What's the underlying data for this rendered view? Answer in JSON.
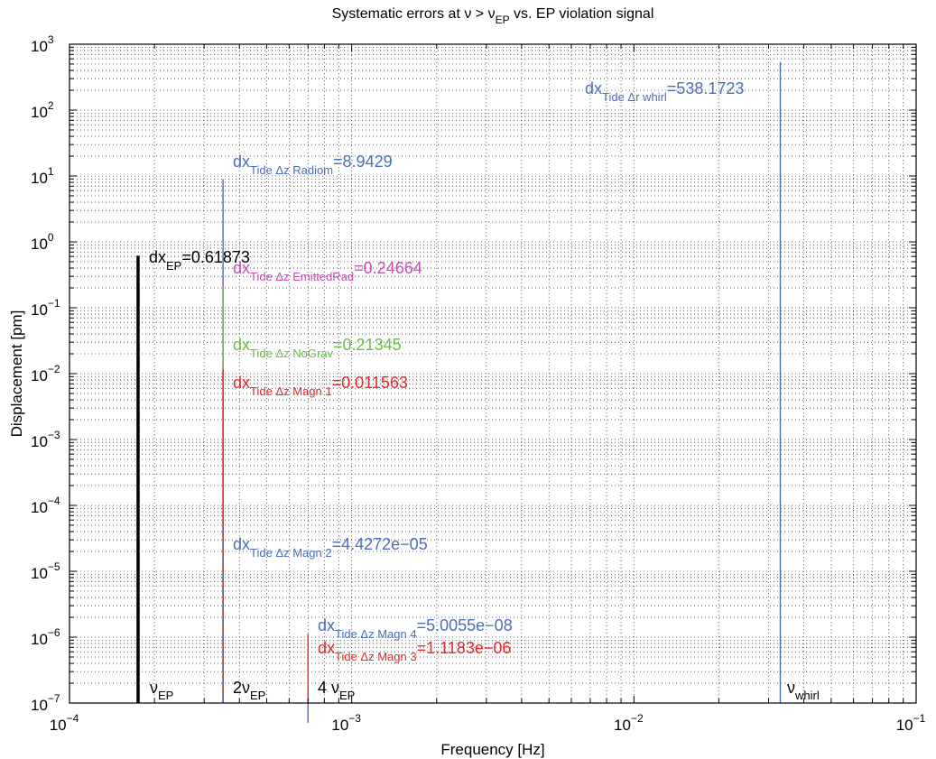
{
  "chart_data": {
    "type": "stem",
    "title": {
      "main": "Systematic errors at ν > ν",
      "sub": "EP",
      "tail": " vs. EP violation signal"
    },
    "xlabel": "Frequency [Hz]",
    "ylabel": "Displacement [pm]",
    "xscale": "log",
    "yscale": "log",
    "xlim": [
      0.0001,
      0.1
    ],
    "ylim": [
      1e-07,
      1000
    ],
    "grid": "dotted-minor",
    "x_ticks": [
      {
        "value": 0.0001,
        "base": "10",
        "exp": "−4"
      },
      {
        "value": 0.001,
        "base": "10",
        "exp": "−3"
      },
      {
        "value": 0.01,
        "base": "10",
        "exp": "−2"
      },
      {
        "value": 0.1,
        "base": "10",
        "exp": "−1"
      }
    ],
    "y_ticks": [
      {
        "value": 1e-07,
        "base": "10",
        "exp": "−7"
      },
      {
        "value": 1e-06,
        "base": "10",
        "exp": "−6"
      },
      {
        "value": 1e-05,
        "base": "10",
        "exp": "−5"
      },
      {
        "value": 0.0001,
        "base": "10",
        "exp": "−4"
      },
      {
        "value": 0.001,
        "base": "10",
        "exp": "−3"
      },
      {
        "value": 0.01,
        "base": "10",
        "exp": "−2"
      },
      {
        "value": 0.1,
        "base": "10",
        "exp": "−1"
      },
      {
        "value": 1,
        "base": "10",
        "exp": "0"
      },
      {
        "value": 10,
        "base": "10",
        "exp": "1"
      },
      {
        "value": 100,
        "base": "10",
        "exp": "2"
      },
      {
        "value": 1000,
        "base": "10",
        "exp": "3"
      }
    ],
    "series": [
      {
        "x": 0.000175,
        "y": 0.61873,
        "color": "#000000",
        "style": "solid",
        "thick": true,
        "label": {
          "main": "dx",
          "sub": "EP",
          "value": "=0.61873"
        }
      },
      {
        "x": 0.00035,
        "y": 8.9429,
        "color": "#4a6dbf",
        "style": "solid",
        "label": {
          "main": "dx",
          "sub": "Tide Δz Radiom",
          "value": "=8.9429"
        }
      },
      {
        "x": 0.00035,
        "y": 0.24664,
        "color": "#c64fb0",
        "style": "solid",
        "label": {
          "main": "dx",
          "sub": "Tide Δz EmittedRad",
          "value": "=0.24664"
        }
      },
      {
        "x": 0.00035,
        "y": 0.21345,
        "color": "#6cbd45",
        "style": "solid",
        "label": {
          "main": "dx",
          "sub": "Tide Δz NoGrav",
          "value": "=0.21345"
        }
      },
      {
        "x": 0.00035,
        "y": 0.011563,
        "color": "#e8272a",
        "style": "solid",
        "label": {
          "main": "dx",
          "sub": "Tide Δz Magn 1",
          "value": "=0.011563"
        }
      },
      {
        "x": 0.00035,
        "y": 4.4272e-05,
        "color": "#4a6dbf",
        "style": "dashed",
        "label": {
          "main": "dx",
          "sub": "Tide Δz Magn 2",
          "value": "=4.4272e−05"
        }
      },
      {
        "x": 0.0007,
        "y": 1.1183e-06,
        "color": "#e8272a",
        "style": "solid",
        "label": {
          "main": "dx",
          "sub": "Tide Δz Magn 3",
          "value": "=1.1183e−06"
        }
      },
      {
        "x": 0.0007,
        "y": 5.0055e-08,
        "color": "#4a6dbf",
        "style": "solid",
        "label": {
          "main": "dx",
          "sub": "Tide Δz Magn 4",
          "value": "=5.0055e−08"
        }
      },
      {
        "x": 0.033,
        "y": 538.1723,
        "color": "#4a6dbf",
        "style": "solid",
        "label": {
          "main": "dx",
          "sub": "Tide Δr whirl",
          "value": "=538.1723"
        }
      }
    ],
    "annotations": [
      {
        "x": 0.000175,
        "main": "ν",
        "sub": "EP"
      },
      {
        "x": 0.00035,
        "main": "2ν",
        "sub": "EP"
      },
      {
        "x": 0.0007,
        "main": "4 ν",
        "sub": "EP"
      },
      {
        "x": 0.033,
        "main": "ν",
        "sub": "whirl"
      }
    ]
  }
}
